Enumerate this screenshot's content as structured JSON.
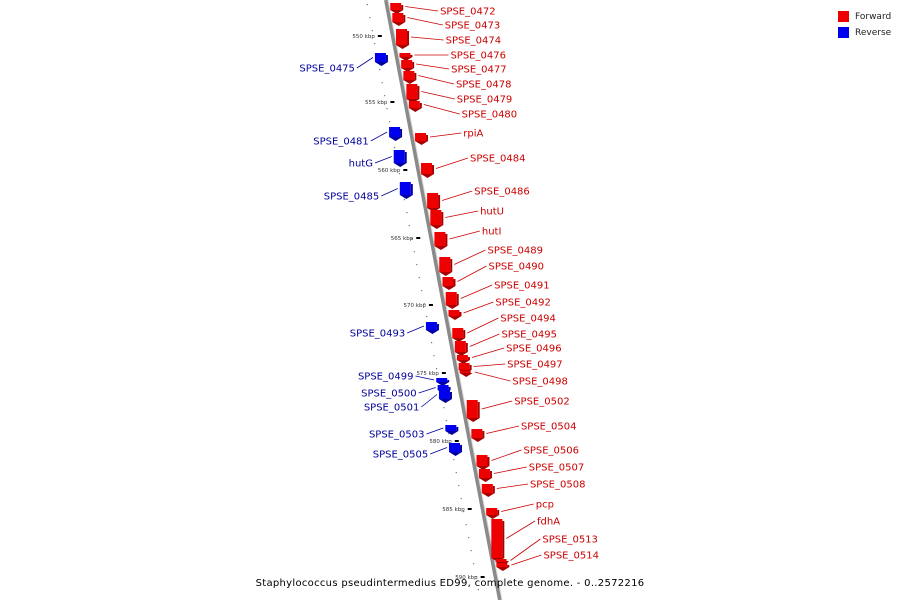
{
  "legend": {
    "forward": {
      "label": "Forward",
      "color": "#ee0000"
    },
    "reverse": {
      "label": "Reverse",
      "color": "#0000ee"
    }
  },
  "caption": "Staphylococcus pseudintermedius ED99, complete genome. - 0..2572216",
  "ruler_ticks": [
    "550 kbp",
    "555 kbp",
    "560 kbp",
    "565 kbp",
    "570 kbp",
    "575 kbp",
    "580 kbp",
    "585 kbp",
    "590 kbp"
  ],
  "forward_genes": [
    "SPSE_0472",
    "SPSE_0473",
    "SPSE_0474",
    "SPSE_0476",
    "SPSE_0477",
    "SPSE_0478",
    "SPSE_0479",
    "SPSE_0480",
    "rpiA",
    "SPSE_0484",
    "SPSE_0486",
    "hutU",
    "hutI",
    "SPSE_0489",
    "SPSE_0490",
    "SPSE_0491",
    "SPSE_0492",
    "SPSE_0494",
    "SPSE_0495",
    "SPSE_0496",
    "SPSE_0497",
    "SPSE_0498",
    "SPSE_0502",
    "SPSE_0504",
    "SPSE_0506",
    "SPSE_0507",
    "SPSE_0508",
    "pcp",
    "fdhA",
    "SPSE_0513",
    "SPSE_0514"
  ],
  "reverse_genes": [
    "SPSE_0475",
    "SPSE_0481",
    "hutG",
    "SPSE_0485",
    "SPSE_0493",
    "SPSE_0499",
    "SPSE_0500",
    "SPSE_0501",
    "SPSE_0503",
    "SPSE_0505"
  ]
}
